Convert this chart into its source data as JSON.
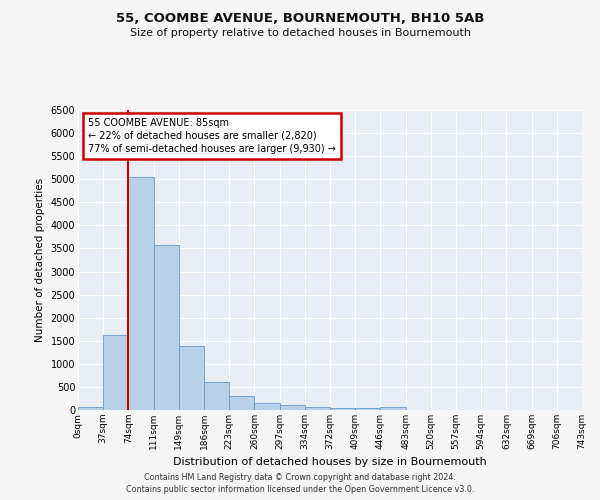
{
  "title": "55, COOMBE AVENUE, BOURNEMOUTH, BH10 5AB",
  "subtitle": "Size of property relative to detached houses in Bournemouth",
  "xlabel": "Distribution of detached houses by size in Bournemouth",
  "ylabel": "Number of detached properties",
  "bar_color": "#b8d0e8",
  "bar_edge_color": "#6699cc",
  "background_color": "#e8eef5",
  "grid_color": "#ffffff",
  "bin_labels": [
    "0sqm",
    "37sqm",
    "74sqm",
    "111sqm",
    "149sqm",
    "186sqm",
    "223sqm",
    "260sqm",
    "297sqm",
    "334sqm",
    "372sqm",
    "409sqm",
    "446sqm",
    "483sqm",
    "520sqm",
    "557sqm",
    "594sqm",
    "632sqm",
    "669sqm",
    "706sqm",
    "743sqm"
  ],
  "bar_heights": [
    70,
    1620,
    5050,
    3580,
    1390,
    615,
    295,
    150,
    110,
    75,
    50,
    40,
    55,
    0,
    0,
    0,
    0,
    0,
    0,
    0
  ],
  "ylim": [
    0,
    6500
  ],
  "yticks": [
    0,
    500,
    1000,
    1500,
    2000,
    2500,
    3000,
    3500,
    4000,
    4500,
    5000,
    5500,
    6000,
    6500
  ],
  "property_line_x_label": "74sqm",
  "property_line_color": "#cc0000",
  "annotation_line1": "55 COOMBE AVENUE: 85sqm",
  "annotation_line2": "← 22% of detached houses are smaller (2,820)",
  "annotation_line3": "77% of semi-detached houses are larger (9,930) →",
  "annotation_box_color": "#ffffff",
  "annotation_box_edge_color": "#cc0000",
  "footer_line1": "Contains HM Land Registry data © Crown copyright and database right 2024.",
  "footer_line2": "Contains public sector information licensed under the Open Government Licence v3.0.",
  "fig_bg": "#f5f5f5"
}
